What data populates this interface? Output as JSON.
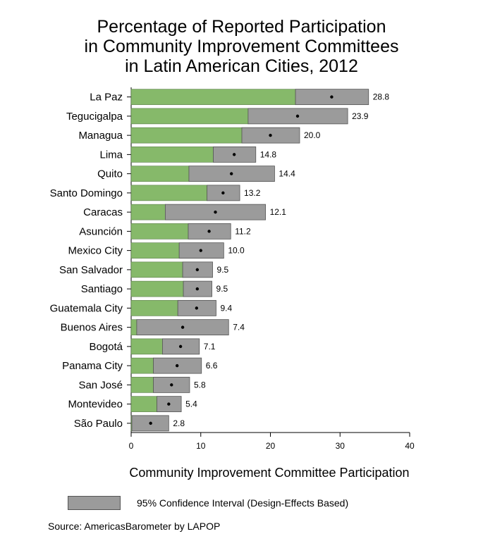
{
  "chart_data": {
    "type": "bar",
    "title_lines": [
      "Percentage of Reported Participation",
      "in Community Improvement Committees",
      "in Latin American Cities, 2012"
    ],
    "xlabel": "Community Improvement Committee Participation",
    "xlim": [
      0,
      40
    ],
    "xticks": [
      0,
      10,
      20,
      30,
      40
    ],
    "grid": false,
    "bar_color": "#86b96a",
    "ci_color": "#9b9b9b",
    "legend": {
      "label": "95% Confidence Interval (Design-Effects Based)",
      "placement": "bottom"
    },
    "source": "Source: AmericasBarometer by LAPOP",
    "categories": [
      "La Paz",
      "Tegucigalpa",
      "Managua",
      "Lima",
      "Quito",
      "Santo Domingo",
      "Caracas",
      "Asunción",
      "Mexico City",
      "San Salvador",
      "Santiago",
      "Guatemala City",
      "Buenos Aires",
      "Bogotá",
      "Panama City",
      "San José",
      "Montevideo",
      "São Paulo"
    ],
    "values": [
      28.8,
      23.9,
      20.0,
      14.8,
      14.4,
      13.2,
      12.1,
      11.2,
      10.0,
      9.5,
      9.5,
      9.4,
      7.4,
      7.1,
      6.6,
      5.8,
      5.4,
      2.8
    ],
    "value_labels": [
      "28.8",
      "23.9",
      "20.0",
      "14.8",
      "14.4",
      "13.2",
      "12.1",
      "11.2",
      "10.0",
      "9.5",
      "9.5",
      "9.4",
      "7.4",
      "7.1",
      "6.6",
      "5.8",
      "5.4",
      "2.8"
    ],
    "ci_low": [
      23.6,
      16.8,
      15.9,
      11.8,
      8.3,
      10.9,
      4.9,
      8.2,
      6.9,
      7.4,
      7.5,
      6.7,
      0.8,
      4.5,
      3.2,
      3.2,
      3.7,
      0.1
    ],
    "ci_high": [
      34.1,
      31.1,
      24.2,
      17.9,
      20.6,
      15.6,
      19.3,
      14.3,
      13.3,
      11.7,
      11.6,
      12.2,
      14.0,
      9.8,
      10.1,
      8.4,
      7.2,
      5.4
    ]
  }
}
